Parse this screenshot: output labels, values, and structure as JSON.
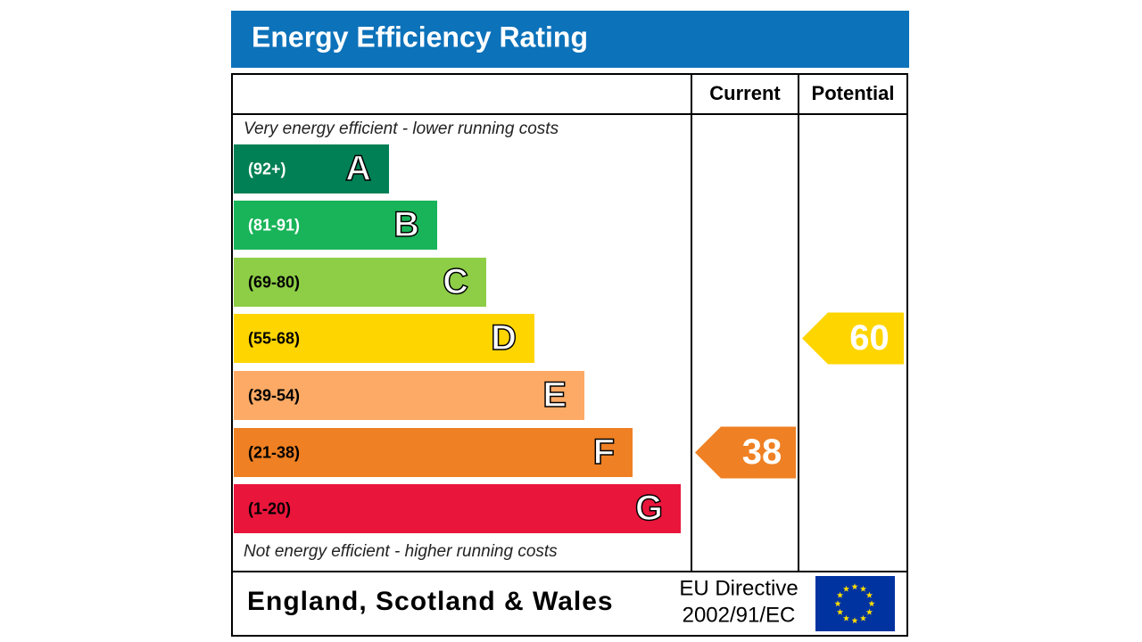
{
  "title": "Energy Efficiency Rating",
  "columns": {
    "current": "Current",
    "potential": "Potential"
  },
  "top_note": "Very energy efficient - lower running costs",
  "bottom_note": "Not energy efficient - higher running costs",
  "bands": [
    {
      "range": "(92+)",
      "letter": "A",
      "color": "#008054",
      "text_color": "#ffffff"
    },
    {
      "range": "(81-91)",
      "letter": "B",
      "color": "#19b459",
      "text_color": "#ffffff"
    },
    {
      "range": "(69-80)",
      "letter": "C",
      "color": "#8dce46",
      "text_color": "#000000"
    },
    {
      "range": "(55-68)",
      "letter": "D",
      "color": "#ffd500",
      "text_color": "#000000"
    },
    {
      "range": "(39-54)",
      "letter": "E",
      "color": "#fcaa65",
      "text_color": "#000000"
    },
    {
      "range": "(21-38)",
      "letter": "F",
      "color": "#ef8023",
      "text_color": "#000000"
    },
    {
      "range": "(1-20)",
      "letter": "G",
      "color": "#e9153b",
      "text_color": "#000000"
    }
  ],
  "current": 38,
  "potential": 60,
  "footer": {
    "region": "England, Scotland & Wales",
    "directive_line1": "EU Directive",
    "directive_line2": "2002/91/EC"
  }
}
